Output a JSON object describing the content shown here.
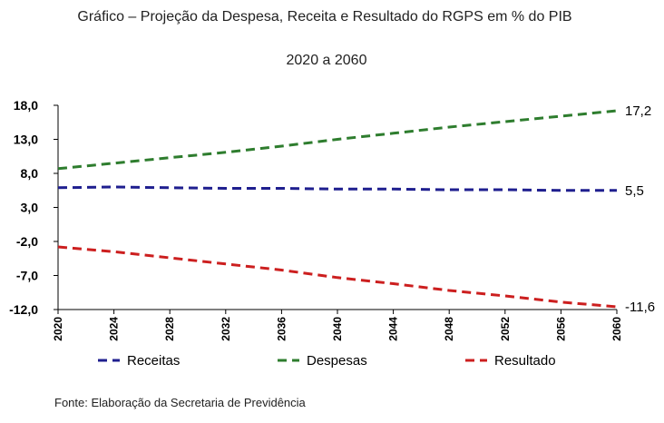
{
  "title_line_1": "Gráfico – Projeção da Despesa, Receita e Resultado  do RGPS em % do PIB",
  "title_line_2": "2020 a 2060",
  "source": "Fonte: Elaboração da Secretaria de Previdência",
  "colors": {
    "receitas": "#1f1f8f",
    "despesas": "#2e7d2e",
    "resultado": "#cc1f1f"
  },
  "chart_data": {
    "type": "line",
    "title": "Gráfico – Projeção da Despesa, Receita e Resultado  do RGPS em % do PIB",
    "subtitle": "2020 a 2060",
    "x": [
      2020,
      2024,
      2028,
      2032,
      2036,
      2040,
      2044,
      2048,
      2052,
      2056,
      2060
    ],
    "x_tick_labels": [
      "2020",
      "2024",
      "2028",
      "2032",
      "2036",
      "2040",
      "2044",
      "2048",
      "2052",
      "2056",
      "2060"
    ],
    "y_tick_labels": [
      "18,0",
      "13,0",
      "8,0",
      "3,0",
      "-2,0",
      "-7,0",
      "-12,0"
    ],
    "y_ticks": [
      18,
      13,
      8,
      3,
      -2,
      -7,
      -12
    ],
    "ylim": [
      -12,
      18
    ],
    "xlabel": "",
    "ylabel": "",
    "grid": false,
    "legend_position": "bottom",
    "series": [
      {
        "name": "Receitas",
        "color_key": "receitas",
        "values": [
          5.9,
          6.0,
          5.9,
          5.8,
          5.8,
          5.7,
          5.7,
          5.6,
          5.6,
          5.5,
          5.5
        ],
        "end_label": "5,5"
      },
      {
        "name": "Despesas",
        "color_key": "despesas",
        "values": [
          8.7,
          9.5,
          10.3,
          11.1,
          12.0,
          13.0,
          13.9,
          14.8,
          15.6,
          16.4,
          17.2
        ],
        "end_label": "17,2"
      },
      {
        "name": "Resultado",
        "color_key": "resultado",
        "values": [
          -2.8,
          -3.5,
          -4.4,
          -5.3,
          -6.2,
          -7.3,
          -8.2,
          -9.2,
          -10.0,
          -10.9,
          -11.6
        ],
        "end_label": "-11,6"
      }
    ]
  }
}
